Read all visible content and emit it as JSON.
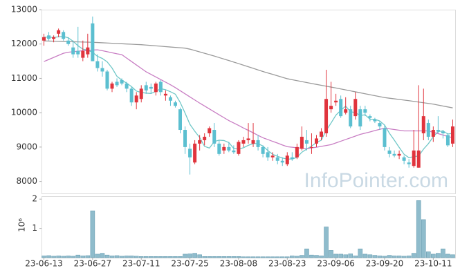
{
  "chart_data": [
    {
      "type": "candlestick",
      "up_color": "#e0343d",
      "down_color": "#5bbfd0",
      "ylim": [
        7650,
        13000
      ],
      "yticks": [
        8000,
        9000,
        10000,
        11000,
        12000,
        13000
      ],
      "open": [
        12100,
        12250,
        12150,
        12300,
        12350,
        12100,
        11900,
        11800,
        11600,
        11700,
        12600,
        11500,
        11300,
        11200,
        10700,
        10900,
        10950,
        10850,
        10700,
        10300,
        10400,
        10800,
        10750,
        10600,
        10900,
        10500,
        10450,
        10300,
        10100,
        9500,
        8950,
        8550,
        9100,
        9200,
        9400,
        9500,
        9100,
        8900,
        9000,
        8900,
        8800,
        9100,
        9200,
        9100,
        9200,
        9000,
        8850,
        8700,
        8700,
        8600,
        8500,
        8700,
        8700,
        8950,
        9200,
        9000,
        9100,
        9300,
        9400,
        10100,
        10300,
        10400,
        10000,
        10100,
        9900,
        10100,
        10100,
        9900,
        9800,
        9700,
        9550,
        8900,
        8800,
        8750,
        8700,
        8550,
        8450,
        8400,
        9400,
        9700,
        9300,
        9500,
        9450,
        9350,
        9100
      ],
      "high": [
        12300,
        12350,
        12250,
        12450,
        12400,
        12200,
        12100,
        12500,
        12100,
        12300,
        12800,
        11700,
        11500,
        11250,
        10900,
        11000,
        11000,
        10900,
        10750,
        10600,
        10800,
        10900,
        10850,
        10900,
        10950,
        10650,
        10500,
        10350,
        10150,
        9600,
        9100,
        9200,
        9350,
        9400,
        9600,
        9700,
        9200,
        9100,
        9150,
        9050,
        9200,
        9300,
        9700,
        9700,
        9350,
        9050,
        9000,
        8850,
        8800,
        8700,
        8850,
        8850,
        9100,
        9600,
        9500,
        9400,
        9350,
        9550,
        11250,
        10900,
        10550,
        10500,
        10450,
        10200,
        10600,
        10200,
        10200,
        9950,
        9850,
        9750,
        9650,
        9000,
        8900,
        8900,
        8750,
        8650,
        9500,
        10800,
        10700,
        9800,
        9600,
        9900,
        9500,
        9400,
        9800
      ],
      "low": [
        11950,
        12100,
        12050,
        12200,
        12100,
        11950,
        11600,
        11600,
        11500,
        11600,
        11500,
        11200,
        11050,
        10650,
        10600,
        10750,
        10800,
        10600,
        10200,
        10100,
        10300,
        10550,
        10550,
        10500,
        10500,
        10350,
        10200,
        10150,
        9400,
        8800,
        8200,
        8500,
        8900,
        9050,
        9300,
        9000,
        8750,
        8800,
        8850,
        8800,
        8750,
        9000,
        9100,
        9000,
        8900,
        8700,
        8600,
        8600,
        8500,
        8450,
        8450,
        8600,
        8650,
        8900,
        8900,
        8800,
        9000,
        9200,
        9300,
        10000,
        10200,
        9850,
        9950,
        9550,
        9800,
        9500,
        9900,
        9750,
        9700,
        9500,
        8900,
        8700,
        8700,
        8650,
        8500,
        8400,
        8400,
        8400,
        9200,
        9200,
        9150,
        9400,
        9250,
        9000,
        9000
      ],
      "close": [
        12200,
        12150,
        12200,
        12400,
        12150,
        12000,
        11700,
        11700,
        11800,
        11900,
        11500,
        11300,
        11200,
        10700,
        10850,
        10800,
        10850,
        10700,
        10300,
        10500,
        10700,
        10650,
        10700,
        10850,
        10600,
        10550,
        10350,
        10200,
        9500,
        9000,
        8700,
        9100,
        9200,
        9300,
        9550,
        9100,
        8800,
        9000,
        8900,
        8850,
        9150,
        9200,
        9250,
        9200,
        9000,
        8800,
        8700,
        8750,
        8600,
        8550,
        8750,
        8650,
        9000,
        9300,
        9100,
        9000,
        9250,
        9450,
        10400,
        10200,
        10350,
        9900,
        10100,
        9600,
        10400,
        9600,
        10000,
        9850,
        9750,
        9600,
        9000,
        8800,
        8750,
        8800,
        8600,
        8500,
        8900,
        8900,
        9900,
        9300,
        9500,
        9450,
        9400,
        9050,
        9600
      ],
      "series": [
        {
          "color": "#6fc7c7",
          "values": [
            12200,
            12200,
            12190,
            12210,
            12220,
            12180,
            12080,
            11950,
            11850,
            11820,
            11760,
            11640,
            11580,
            11480,
            11300,
            11060,
            10950,
            10860,
            10760,
            10630,
            10590,
            10570,
            10560,
            10620,
            10700,
            10670,
            10610,
            10540,
            10300,
            9990,
            9660,
            9460,
            9280,
            9020,
            8970,
            9160,
            9200,
            9190,
            9130,
            8960,
            8940,
            8980,
            9050,
            9100,
            9100,
            9030,
            8900,
            8790,
            8730,
            8680,
            8650,
            8650,
            8700,
            8850,
            8940,
            9030,
            9130,
            9200,
            9480,
            9700,
            9930,
            10070,
            10190,
            10030,
            10000,
            9920,
            9940,
            9810,
            9810,
            9760,
            9640,
            9400,
            9200,
            8990,
            8790,
            8690,
            8720,
            8740,
            8940,
            9100,
            9300,
            9450,
            9470,
            9380,
            9400
          ]
        },
        {
          "color": "#c87dc3",
          "values": [
            11490,
            11550,
            11610,
            11670,
            11730,
            11760,
            11775,
            11790,
            11805,
            11815,
            11825,
            11830,
            11805,
            11775,
            11745,
            11715,
            11690,
            11590,
            11490,
            11390,
            11290,
            11190,
            11115,
            11040,
            10965,
            10890,
            10815,
            10730,
            10640,
            10550,
            10460,
            10370,
            10280,
            10195,
            10110,
            10025,
            9940,
            9855,
            9770,
            9700,
            9630,
            9555,
            9485,
            9415,
            9340,
            9270,
            9220,
            9165,
            9115,
            9060,
            9010,
            8995,
            8980,
            8965,
            8950,
            8975,
            8995,
            9020,
            9045,
            9070,
            9120,
            9170,
            9220,
            9270,
            9320,
            9370,
            9405,
            9440,
            9480,
            9515,
            9550,
            9530,
            9510,
            9490,
            9470,
            9470,
            9470,
            9470,
            9470,
            9470,
            9430,
            9390,
            9350,
            9310,
            9270
          ]
        },
        {
          "color": "#9a9a9a",
          "values": [
            12090,
            12086,
            12082,
            12078,
            12074,
            12070,
            12066,
            12062,
            12058,
            12054,
            12050,
            12043,
            12036,
            12029,
            12022,
            12015,
            12008,
            12001,
            11994,
            11987,
            11980,
            11969,
            11958,
            11947,
            11936,
            11924,
            11913,
            11902,
            11891,
            11880,
            11850,
            11810,
            11770,
            11730,
            11690,
            11650,
            11606,
            11562,
            11518,
            11474,
            11430,
            11384,
            11338,
            11292,
            11246,
            11200,
            11158,
            11116,
            11074,
            11032,
            10990,
            10962,
            10934,
            10906,
            10878,
            10850,
            10824,
            10798,
            10772,
            10746,
            10720,
            10692,
            10664,
            10636,
            10608,
            10580,
            10552,
            10524,
            10496,
            10468,
            10440,
            10422,
            10404,
            10386,
            10368,
            10350,
            10330,
            10310,
            10290,
            10270,
            10250,
            10222,
            10195,
            10168,
            10140
          ]
        }
      ],
      "watermark": "InfoPointer.com"
    },
    {
      "type": "bar",
      "color": "#8fbccc",
      "ylabel": "10⁶",
      "ylim": [
        0,
        2100000
      ],
      "yticks": [
        {
          "value": 1000000,
          "label": "1"
        },
        {
          "value": 2000000,
          "label": "2"
        }
      ],
      "categories": [
        "23-06-13",
        null,
        null,
        null,
        null,
        null,
        null,
        null,
        null,
        null,
        "23-06-27",
        null,
        null,
        null,
        null,
        null,
        null,
        null,
        null,
        null,
        "23-07-11",
        null,
        null,
        null,
        null,
        null,
        null,
        null,
        null,
        null,
        "23-07-25",
        null,
        null,
        null,
        null,
        null,
        null,
        null,
        null,
        null,
        "23-08-08",
        null,
        null,
        null,
        null,
        null,
        null,
        null,
        null,
        null,
        "23-08-23",
        null,
        null,
        null,
        null,
        null,
        null,
        null,
        null,
        null,
        "23-09-06",
        null,
        null,
        null,
        null,
        null,
        null,
        null,
        null,
        null,
        "23-09-20",
        null,
        null,
        null,
        null,
        null,
        null,
        null,
        null,
        null,
        "23-10-11",
        null,
        null,
        null,
        null
      ],
      "values": [
        60000,
        70000,
        50000,
        60000,
        50000,
        60000,
        50000,
        90000,
        60000,
        70000,
        1600000,
        120000,
        150000,
        90000,
        60000,
        70000,
        50000,
        60000,
        60000,
        50000,
        40000,
        40000,
        40000,
        40000,
        40000,
        40000,
        40000,
        40000,
        40000,
        120000,
        130000,
        150000,
        100000,
        40000,
        40000,
        40000,
        40000,
        40000,
        40000,
        40000,
        40000,
        30000,
        30000,
        30000,
        30000,
        30000,
        30000,
        30000,
        30000,
        30000,
        30000,
        60000,
        50000,
        80000,
        300000,
        90000,
        80000,
        60000,
        1050000,
        250000,
        120000,
        120000,
        100000,
        130000,
        60000,
        300000,
        120000,
        100000,
        80000,
        60000,
        50000,
        80000,
        60000,
        60000,
        50000,
        60000,
        150000,
        1950000,
        1300000,
        200000,
        120000,
        150000,
        300000,
        120000,
        100000
      ]
    }
  ]
}
